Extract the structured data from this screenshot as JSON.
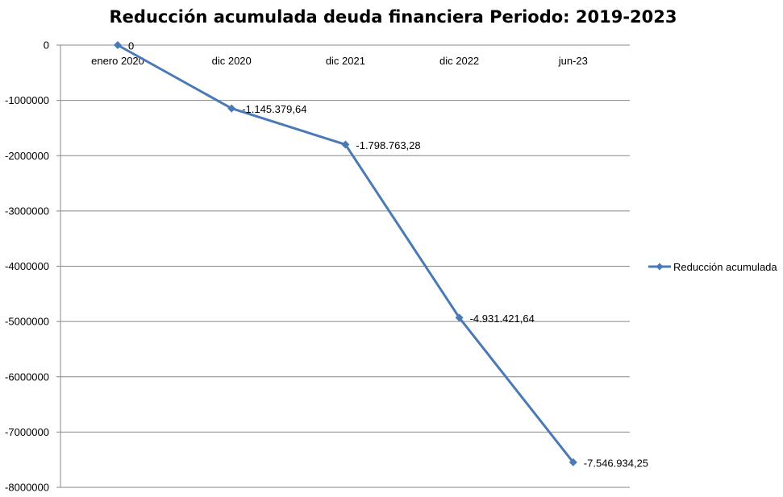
{
  "chart_data": {
    "type": "line",
    "title": "Reducción acumulada deuda financiera Periodo: 2019-2023",
    "categories": [
      "enero 2020",
      "dic 2020",
      "dic 2021",
      "dic 2022",
      "jun-23"
    ],
    "series": [
      {
        "name": "Reducción acumulada",
        "values": [
          0,
          -1145379.64,
          -1798763.28,
          -4931421.64,
          -7546934.25
        ],
        "data_labels": [
          "0",
          "-1.145.379,64",
          "-1.798.763,28",
          "-4.931.421,64",
          "-7.546.934,25"
        ],
        "color": "#4a7ab5"
      }
    ],
    "ylim": [
      -8000000,
      0
    ],
    "yticks": [
      0,
      -1000000,
      -2000000,
      -3000000,
      -4000000,
      -5000000,
      -6000000,
      -7000000,
      -8000000
    ],
    "ytick_labels": [
      "0",
      "-1000000",
      "-2000000",
      "-3000000",
      "-4000000",
      "-5000000",
      "-6000000",
      "-7000000",
      "-8000000"
    ],
    "grid": true,
    "legend": "right",
    "gridline_color": "#878787",
    "marker": "diamond"
  }
}
